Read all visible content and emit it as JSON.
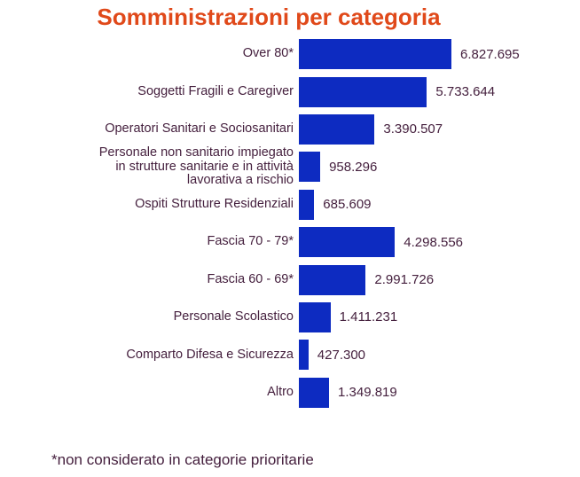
{
  "page": {
    "title": "Somministrazioni per categoria",
    "footnote": "*non considerato in categorie prioritarie"
  },
  "colors": {
    "title_orange": "#E0491A",
    "bar_blue": "#0D2BC1",
    "text_plum": "#45203E",
    "background": "#FFFFFF"
  },
  "chart_data": {
    "type": "bar",
    "orientation": "horizontal",
    "title": "Somministrazioni per categoria",
    "categories": [
      "Over 80*",
      "Soggetti Fragili e Caregiver",
      "Operatori Sanitari e Sociosanitari",
      "Personale non sanitario impiegato\nin strutture sanitarie e in attività\nlavorativa a rischio",
      "Ospiti Strutture Residenziali",
      "Fascia 70 - 79*",
      "Fascia 60 - 69*",
      "Personale Scolastico",
      "Comparto Difesa e Sicurezza",
      "Altro"
    ],
    "values": [
      6827695,
      5733644,
      3390507,
      958296,
      685609,
      4298556,
      2991726,
      1411231,
      427300,
      1349819
    ],
    "data_labels": [
      "6.827.695",
      "5.733.644",
      "3.390.507",
      "958.296",
      "685.609",
      "4.298.556",
      "2.991.726",
      "1.411.231",
      "427.300",
      "1.349.819"
    ],
    "xlim": [
      0,
      6827695
    ],
    "grid": false,
    "legend": false,
    "data_labels_position": "right-of-bar",
    "footnote": "*non considerato in categorie prioritarie"
  }
}
